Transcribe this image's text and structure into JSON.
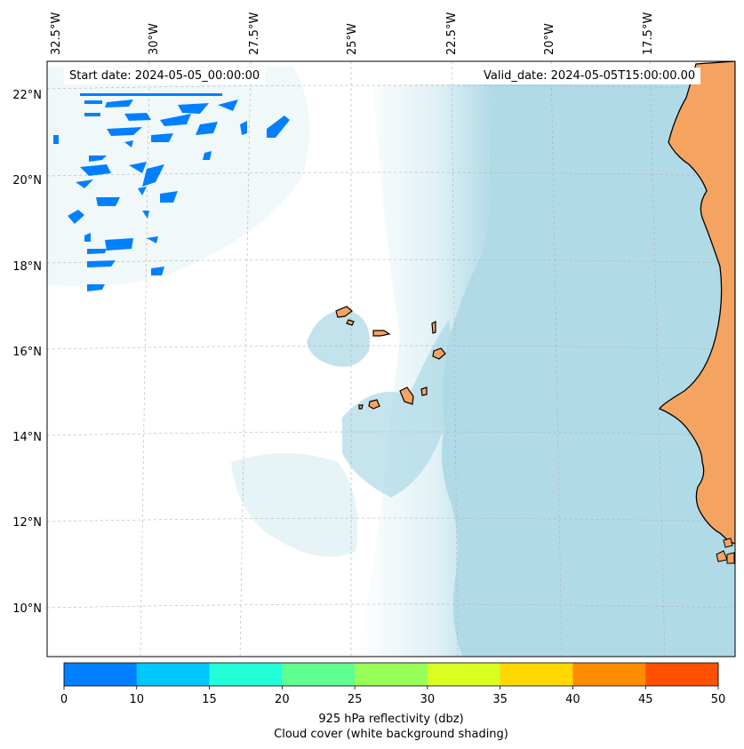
{
  "map": {
    "start_date": "Start date: 2024-05-05_00:00:00",
    "valid_date": "Valid_date: 2024-05-05T15:00:00.00",
    "lon_labels": [
      "32.5°W",
      "30°W",
      "27.5°W",
      "25°W",
      "22.5°W",
      "20°W",
      "17.5°W"
    ],
    "lat_labels": [
      "22°N",
      "20°N",
      "18°N",
      "16°N",
      "14°N",
      "12°N",
      "10°N"
    ],
    "land_color": "#f4a460",
    "cloud_color": "#add8e6",
    "ocean_color": "#ffffff",
    "reflectivity_color": "#0080ff"
  },
  "colorbar": {
    "ticks": [
      "0",
      "10",
      "15",
      "20",
      "25",
      "30",
      "35",
      "40",
      "45",
      "50"
    ],
    "colors": [
      "#0080ff",
      "#00c8ff",
      "#20ffd8",
      "#60ff90",
      "#98ff58",
      "#d8ff20",
      "#ffd800",
      "#ff8c00",
      "#ff5000"
    ],
    "label_line1": "925 hPa reflectivity (dbz)",
    "label_line2": "Cloud cover (white background shading)"
  }
}
